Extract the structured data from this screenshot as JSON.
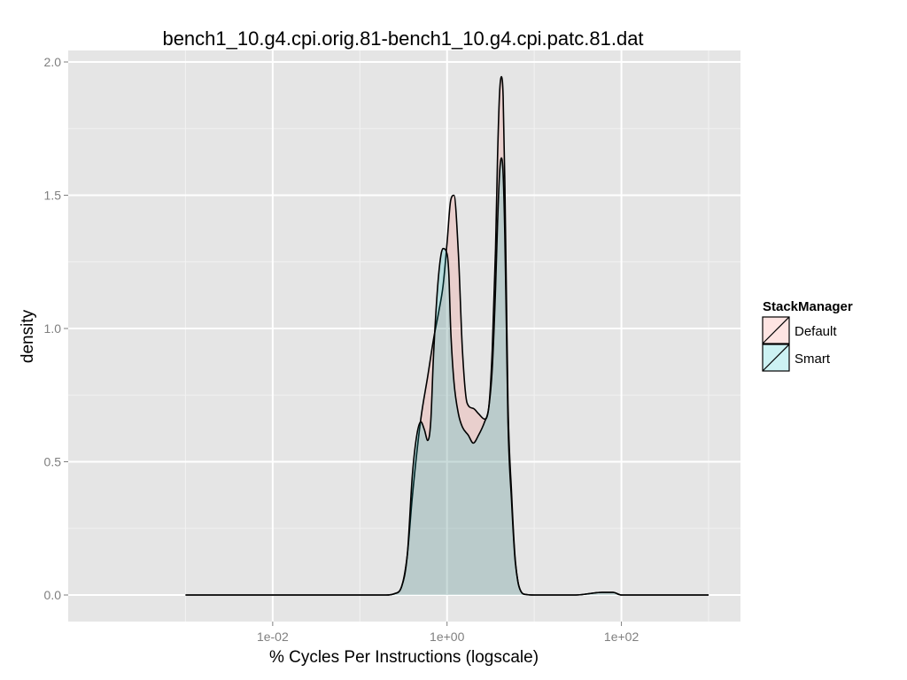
{
  "chart_data": {
    "type": "area",
    "title": "bench1_10.g4.cpi.orig.81-bench1_10.g4.cpi.patc.81.dat",
    "xlabel": "% Cycles Per Instructions (logscale)",
    "ylabel": "density",
    "x_scale": "log10",
    "xlim": [
      0.0001,
      1000
    ],
    "ylim": [
      0,
      2.0
    ],
    "x_ticks": [
      {
        "value": 0.01,
        "label": "1e-02"
      },
      {
        "value": 1,
        "label": "1e+00"
      },
      {
        "value": 100,
        "label": "1e+02"
      }
    ],
    "y_ticks": [
      {
        "value": 0.0,
        "label": "0.0"
      },
      {
        "value": 0.5,
        "label": "0.5"
      },
      {
        "value": 1.0,
        "label": "1.0"
      },
      {
        "value": 1.5,
        "label": "1.5"
      },
      {
        "value": 2.0,
        "label": "2.0"
      }
    ],
    "grid": true,
    "legend": {
      "title": "StackManager",
      "position": "right"
    },
    "series": [
      {
        "name": "Default",
        "color": "#F8766D",
        "x": [
          0.001,
          0.1,
          0.2,
          0.25,
          0.3,
          0.35,
          0.4,
          0.5,
          0.6,
          0.7,
          0.8,
          0.9,
          1.0,
          1.1,
          1.2,
          1.35,
          1.5,
          1.7,
          2.0,
          2.3,
          2.7,
          3.0,
          3.3,
          3.6,
          3.8,
          4.0,
          4.2,
          4.4,
          4.6,
          4.8,
          5.0,
          5.5,
          6.0,
          6.5,
          7.0,
          8.0,
          10.0,
          30.0,
          60.0,
          80.0,
          100.0,
          1000
        ],
        "y": [
          0,
          0,
          0,
          0.005,
          0.03,
          0.15,
          0.37,
          0.66,
          0.82,
          0.96,
          1.06,
          1.16,
          1.32,
          1.48,
          1.5,
          1.28,
          0.92,
          0.72,
          0.7,
          0.68,
          0.66,
          0.7,
          0.92,
          1.3,
          1.65,
          1.88,
          1.945,
          1.87,
          1.55,
          1.12,
          0.72,
          0.38,
          0.15,
          0.05,
          0.015,
          0.002,
          0,
          0,
          0.01,
          0.01,
          0,
          0
        ]
      },
      {
        "name": "Smart",
        "color": "#00BFC4",
        "x": [
          0.001,
          0.1,
          0.2,
          0.25,
          0.3,
          0.35,
          0.4,
          0.45,
          0.5,
          0.55,
          0.6,
          0.65,
          0.7,
          0.8,
          0.9,
          1.0,
          1.05,
          1.1,
          1.2,
          1.35,
          1.5,
          1.75,
          2.0,
          2.3,
          2.7,
          3.0,
          3.3,
          3.6,
          3.8,
          4.0,
          4.2,
          4.4,
          4.6,
          4.8,
          5.0,
          5.5,
          6.0,
          6.5,
          7.0,
          8.0,
          10.0,
          30.0,
          60.0,
          80.0,
          100.0,
          1000
        ],
        "y": [
          0,
          0,
          0,
          0.005,
          0.03,
          0.15,
          0.45,
          0.6,
          0.65,
          0.62,
          0.58,
          0.65,
          0.9,
          1.2,
          1.3,
          1.28,
          1.2,
          1.0,
          0.8,
          0.68,
          0.63,
          0.6,
          0.57,
          0.6,
          0.65,
          0.7,
          0.85,
          1.15,
          1.4,
          1.58,
          1.64,
          1.58,
          1.35,
          1.0,
          0.65,
          0.35,
          0.14,
          0.05,
          0.015,
          0.002,
          0,
          0,
          0.01,
          0.01,
          0,
          0
        ]
      }
    ]
  }
}
